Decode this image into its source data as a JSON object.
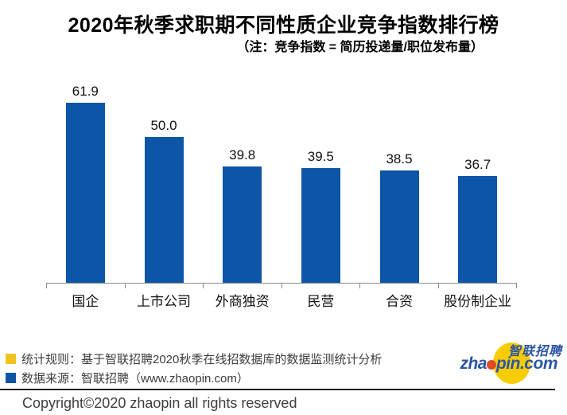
{
  "header": {
    "title": "2020年秋季求职期不同性质企业竞争指数排行榜",
    "subtitle": "（注：竞争指数 = 简历投递量/职位发布量）"
  },
  "chart_data": {
    "type": "bar",
    "title": "2020年秋季求职期不同性质企业竞争指数排行榜",
    "subtitle": "（注：竞争指数 = 简历投递量/职位发布量）",
    "categories": [
      "国企",
      "上市公司",
      "外商独资",
      "民营",
      "合资",
      "股份制企业"
    ],
    "values": [
      61.9,
      50.0,
      39.8,
      39.5,
      38.5,
      36.7
    ],
    "xlabel": "",
    "ylabel": "",
    "ylim": [
      0,
      70
    ],
    "grid": false,
    "legend_position": "none",
    "data_labels": true,
    "bar_color": "#0D55A6",
    "axis_color": "#898989"
  },
  "notes": {
    "rule": "统计规则：基于智联招聘2020秋季在线招数据库的数据监测统计分析",
    "source": "数据来源：智联招聘（www.zhaopin.com）",
    "rule_marker_color": "#F0C420",
    "source_marker_color": "#0D55A6"
  },
  "logo": {
    "cn": "智联招聘",
    "en_prefix": "zha",
    "en_suffix": "pin.com",
    "ellipse_color": "#F7CC00",
    "dot_color": "#E14A22",
    "text_color": "#2a55a5"
  },
  "footer": {
    "copyright": "Copyright©2020 zhaopin all rights reserved"
  }
}
